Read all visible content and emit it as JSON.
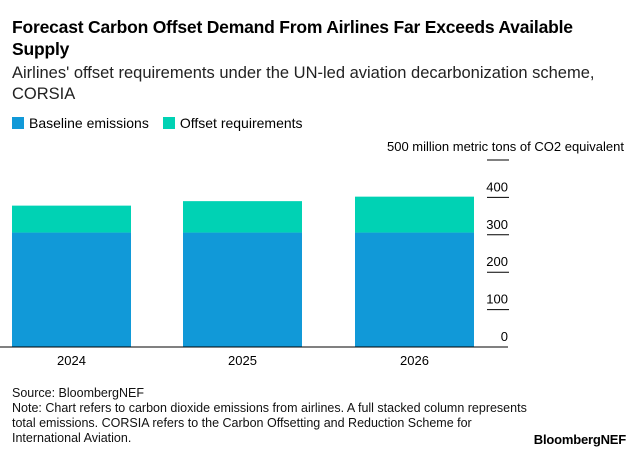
{
  "title": "Forecast Carbon Offset Demand From Airlines Far Exceeds Available Supply",
  "subtitle": "Airlines' offset requirements under the UN-led aviation decarbonization scheme, CORSIA",
  "source": "Source: BloombergNEF",
  "note": "Note: Chart refers to carbon dioxide emissions from airlines. A full stacked column represents total emissions. CORSIA refers to the Carbon Offsetting and Reduction Scheme for International Aviation.",
  "logo": "BloombergNEF",
  "chart_data": {
    "type": "bar",
    "stacked": true,
    "categories": [
      "2024",
      "2025",
      "2026"
    ],
    "series": [
      {
        "name": "Baseline emissions",
        "color": "#1199d8",
        "values": [
          306,
          306,
          306
        ]
      },
      {
        "name": "Offset requirements",
        "color": "#00d2b4",
        "values": [
          72,
          84,
          96
        ]
      }
    ],
    "ylabel": "500 million metric tons of CO2 equivalent",
    "ylim": [
      0,
      500
    ],
    "yticks": [
      "0",
      "100",
      "200",
      "300",
      "400"
    ],
    "yaxis_position": "right",
    "legend_position": "top-left",
    "grid": false
  }
}
